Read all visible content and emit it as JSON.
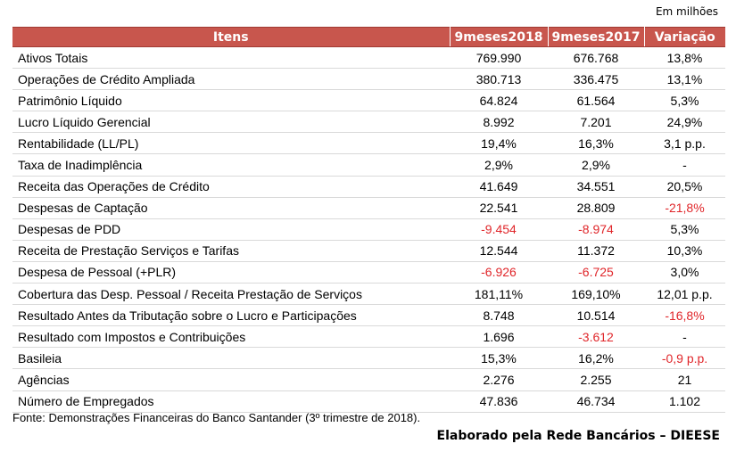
{
  "unit_note": "Em milhões",
  "table": {
    "headers": [
      "Itens",
      "9meses2018",
      "9meses2017",
      "Variação"
    ],
    "rows": [
      {
        "item": "Ativos Totais",
        "v2018": "769.990",
        "v2017": "676.768",
        "var": "13,8%"
      },
      {
        "item": "Operações de Crédito Ampliada",
        "v2018": "380.713",
        "v2017": "336.475",
        "var": "13,1%"
      },
      {
        "item": "Patrimônio Líquido",
        "v2018": "64.824",
        "v2017": "61.564",
        "var": "5,3%"
      },
      {
        "item": "Lucro Líquido Gerencial",
        "v2018": "8.992",
        "v2017": "7.201",
        "var": "24,9%"
      },
      {
        "item": "Rentabilidade (LL/PL)",
        "v2018": "19,4%",
        "v2017": "16,3%",
        "var": "3,1 p.p."
      },
      {
        "item": "Taxa de Inadimplência",
        "v2018": "2,9%",
        "v2017": "2,9%",
        "var": "-"
      },
      {
        "item": "Receita das Operações de Crédito",
        "v2018": "41.649",
        "v2017": "34.551",
        "var": "20,5%"
      },
      {
        "item": "Despesas de Captação",
        "v2018": "22.541",
        "v2017": "28.809",
        "var": "-21,8%"
      },
      {
        "item": "Despesas de PDD",
        "v2018": "-9.454",
        "v2017": "-8.974",
        "var": "5,3%"
      },
      {
        "item": "Receita de Prestação Serviços e Tarifas",
        "v2018": "12.544",
        "v2017": "11.372",
        "var": "10,3%"
      },
      {
        "item": "Despesa de Pessoal (+PLR)",
        "v2018": "-6.926",
        "v2017": "-6.725",
        "var": "3,0%"
      },
      {
        "item": "Cobertura das Desp. Pessoal / Receita Prestação de Serviços",
        "v2018": "181,11%",
        "v2017": "169,10%",
        "var": "12,01 p.p."
      },
      {
        "item": "Resultado Antes da Tributação sobre o Lucro e Participações",
        "v2018": "8.748",
        "v2017": "10.514",
        "var": "-16,8%"
      },
      {
        "item": "Resultado com Impostos e Contribuições",
        "v2018": "1.696",
        "v2017": "-3.612",
        "var": "-"
      },
      {
        "item": "Basileia",
        "v2018": "15,3%",
        "v2017": "16,2%",
        "var": "-0,9 p.p."
      },
      {
        "item": "Agências",
        "v2018": "2.276",
        "v2017": "2.255",
        "var": "21"
      },
      {
        "item": "Número de Empregados",
        "v2018": "47.836",
        "v2017": "46.734",
        "var": "1.102"
      }
    ]
  },
  "colors": {
    "header_bg": "#c8564d",
    "negative": "#e0262a"
  },
  "source_text": "Fonte: Demonstrações Financeiras do Banco Santander (3º trimestre de 2018).",
  "credit_text": "Elaborado pela Rede Bancários – DIEESE"
}
